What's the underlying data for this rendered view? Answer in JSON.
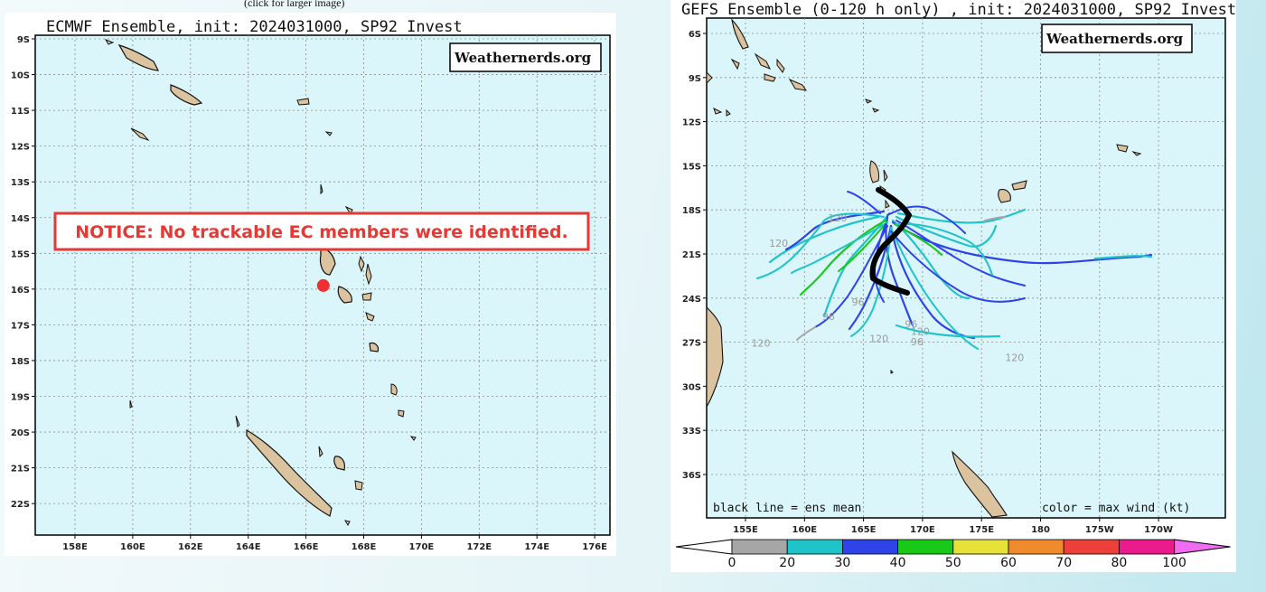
{
  "caption": "(click for larger image)",
  "ec": {
    "title": "ECMWF Ensemble, init: 2024031000, SP92 Invest",
    "brand": "Weathernerds.org",
    "notice": "NOTICE: No trackable EC members were identified.",
    "lat_labels": [
      "9S",
      "10S",
      "11S",
      "12S",
      "13S",
      "14S",
      "15S",
      "16S",
      "17S",
      "18S",
      "19S",
      "20S",
      "21S",
      "22S"
    ],
    "lon_labels": [
      "158E",
      "160E",
      "162E",
      "164E",
      "166E",
      "168E",
      "170E",
      "172E",
      "174E",
      "176E"
    ],
    "initial_position": {
      "lon": 166.6,
      "lat": -15.9
    }
  },
  "gefs": {
    "title": "GEFS Ensemble (0-120 h only) , init: 2024031000, SP92 Invest",
    "brand": "Weathernerds.org",
    "lat_labels": [
      "6S",
      "9S",
      "12S",
      "15S",
      "18S",
      "21S",
      "24S",
      "27S",
      "30S",
      "33S",
      "36S"
    ],
    "lon_labels": [
      "155E",
      "160E",
      "165E",
      "170E",
      "175E",
      "180",
      "175W",
      "170W"
    ],
    "footer_left": "black line = ens mean",
    "footer_right": "color = max wind (kt)",
    "hour_labels": [
      {
        "text": "120",
        "lon": 157.0,
        "lat": -20.5
      },
      {
        "text": "96",
        "lon": 168.5,
        "lat": -26.0
      },
      {
        "text": "120",
        "lon": 169.0,
        "lat": -26.5
      },
      {
        "text": "120",
        "lon": 155.5,
        "lat": -27.3
      },
      {
        "text": "120",
        "lon": 165.5,
        "lat": -27.0
      },
      {
        "text": "96",
        "lon": 169.0,
        "lat": -27.2
      },
      {
        "text": "120",
        "lon": 177.0,
        "lat": -28.3
      },
      {
        "text": "96",
        "lon": 164.0,
        "lat": -24.5
      },
      {
        "text": "96",
        "lon": 161.5,
        "lat": -25.5
      },
      {
        "text": "120",
        "lon": 162.0,
        "lat": -18.8
      }
    ],
    "colorbar": {
      "labels": [
        "0",
        "20",
        "30",
        "40",
        "50",
        "60",
        "70",
        "80",
        "100"
      ],
      "colors": [
        "#a6a6a6",
        "#1fc4c8",
        "#2e43e8",
        "#19c918",
        "#e6e23a",
        "#f08a2c",
        "#ef3f3a",
        "#ec1b8c"
      ],
      "arrow_colors": {
        "low": "#ffffff",
        "high": "#f06cf0"
      }
    }
  }
}
